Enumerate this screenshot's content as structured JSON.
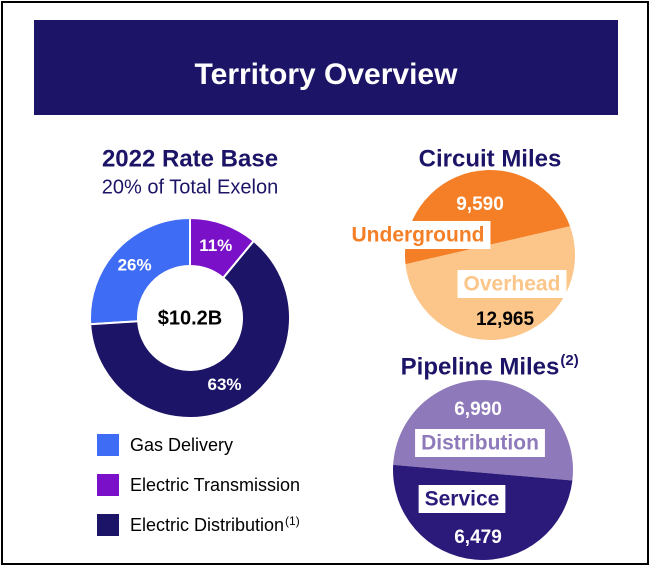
{
  "header": {
    "title": "Territory Overview"
  },
  "chart_data": [
    {
      "type": "donut",
      "title": "2022 Rate Base",
      "subtitle": "20% of Total Exelon",
      "center_label": "$10.2B",
      "categories": [
        "Gas Delivery",
        "Electric Transmission",
        "Electric Distribution"
      ],
      "notes": [
        null,
        null,
        "(1)"
      ],
      "values": [
        26,
        11,
        63
      ],
      "value_labels": [
        "26%",
        "11%",
        "63%"
      ],
      "colors": [
        "#3f6cf5",
        "#7a10c8",
        "#1c1466"
      ]
    },
    {
      "type": "split_circle",
      "title": "Circuit Miles",
      "categories": [
        "Underground",
        "Overhead"
      ],
      "values": [
        9590,
        12965
      ],
      "value_labels": [
        "9,590",
        "12,965"
      ],
      "colors": [
        "#f47f26",
        "#fcc589"
      ]
    },
    {
      "type": "split_circle",
      "title": "Pipeline Miles",
      "title_note": "(2)",
      "categories": [
        "Distribution",
        "Service"
      ],
      "values": [
        6990,
        6479
      ],
      "value_labels": [
        "6,990",
        "6,479"
      ],
      "colors": [
        "#8e79ba",
        "#2c1a7a"
      ]
    }
  ]
}
